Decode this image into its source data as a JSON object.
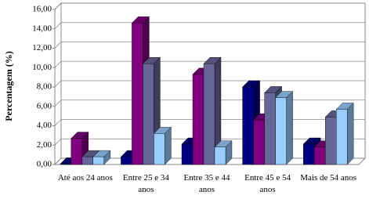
{
  "chart_data": {
    "type": "bar3d",
    "y_label": "Percentagem (%)",
    "categories": [
      "Até aos 24 anos",
      "Entre 25 e 34 anos",
      "Entre 35 e 44 anos",
      "Entre 45 e 54 anos",
      "Mais de 54 anos"
    ],
    "series": [
      {
        "color": "#000080",
        "values": [
          0.05,
          0.8,
          2.1,
          8.0,
          2.1
        ]
      },
      {
        "color": "#800080",
        "values": [
          2.7,
          14.6,
          9.3,
          4.6,
          1.8
        ]
      },
      {
        "color": "#666699",
        "values": [
          0.8,
          10.4,
          10.4,
          7.4,
          4.9
        ]
      },
      {
        "color": "#99ccff",
        "values": [
          0.8,
          3.2,
          1.8,
          6.9,
          5.7
        ]
      }
    ],
    "ylim": [
      0,
      16
    ],
    "yticks": [
      {
        "value": 0,
        "label": "0,00"
      },
      {
        "value": 2,
        "label": "2,00"
      },
      {
        "value": 4,
        "label": "4,00"
      },
      {
        "value": 6,
        "label": "6,00"
      },
      {
        "value": 8,
        "label": "8,00"
      },
      {
        "value": 10,
        "label": "10,00"
      },
      {
        "value": 12,
        "label": "12,00"
      },
      {
        "value": 14,
        "label": "14,00"
      },
      {
        "value": 16,
        "label": "16,00"
      }
    ],
    "grid": true
  }
}
